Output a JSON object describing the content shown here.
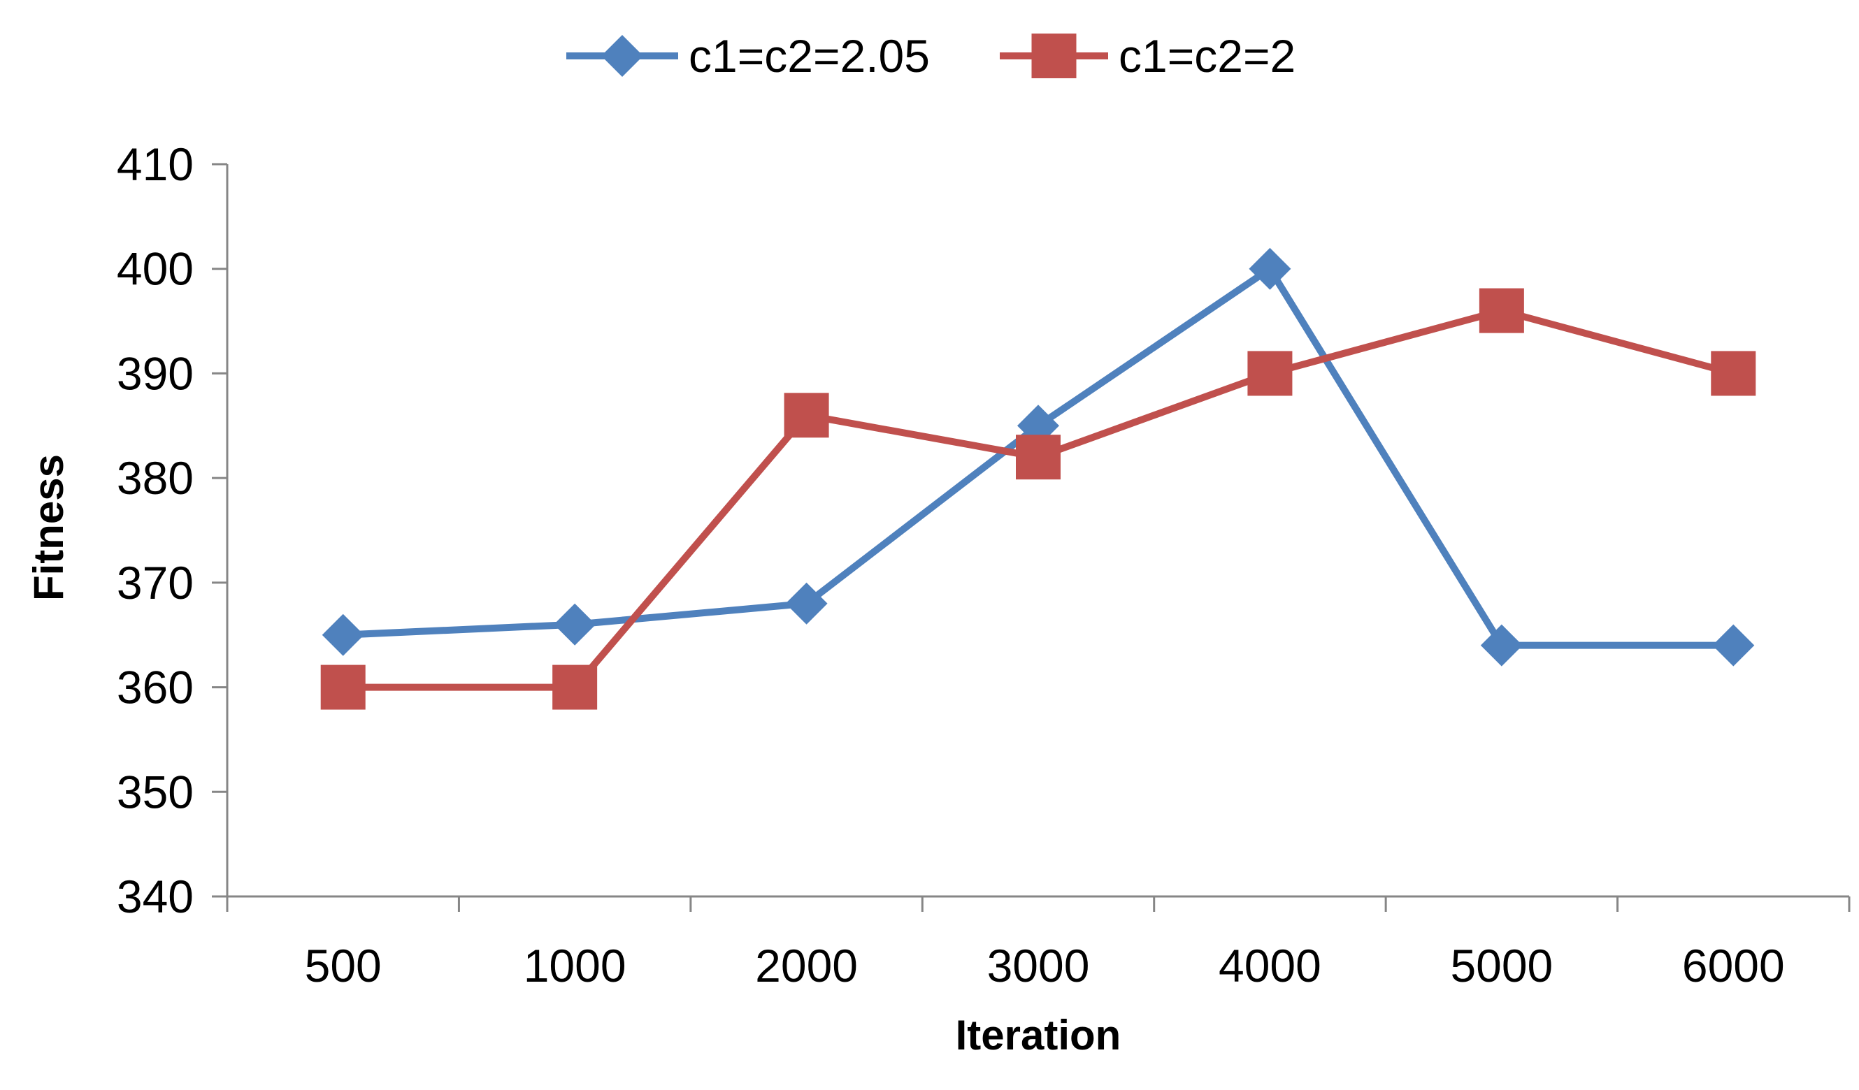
{
  "chart_data": {
    "type": "line",
    "title": "",
    "xlabel": "Iteration",
    "ylabel": "Fitness",
    "categories": [
      "500",
      "1000",
      "2000",
      "3000",
      "4000",
      "5000",
      "6000"
    ],
    "ylim": [
      340,
      410
    ],
    "yticks": [
      340,
      350,
      360,
      370,
      380,
      390,
      400,
      410
    ],
    "grid": false,
    "legend_position": "top",
    "series": [
      {
        "name": "c1=c2=2.05",
        "color": "#4f81bd",
        "marker": "diamond",
        "values": [
          365,
          366,
          368,
          385,
          400,
          364,
          364
        ]
      },
      {
        "name": "c1=c2=2",
        "color": "#c0504d",
        "marker": "square",
        "values": [
          360,
          360,
          386,
          382,
          390,
          396,
          390
        ]
      }
    ]
  }
}
